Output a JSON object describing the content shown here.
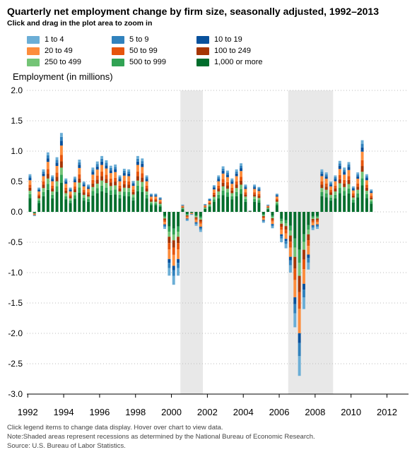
{
  "title": "Quarterly net employment change by firm size, seasonally adjusted, 1992–2013",
  "subtitle": "Click and drag in the plot area to zoom in",
  "footnotes": [
    "Click legend items to change data display. Hover over chart to view data.",
    "Note:Shaded areas represent recessions as determined by the National Bureau of Economic Research.",
    "Source: U.S. Bureau of Labor Statistics."
  ],
  "colors": {
    "recession": "#e8e8e8",
    "grid": "#bbbbbb",
    "axis": "#000000"
  },
  "chart_data": {
    "type": "bar",
    "stacked": true,
    "title": "Quarterly net employment change by firm size, seasonally adjusted, 1992–2013",
    "ylabel": "Employment (in millions)",
    "xlabel": "",
    "ylim": [
      -3.0,
      2.0
    ],
    "yticks": [
      "2.0",
      "1.5",
      "1.0",
      "0.5",
      "0.0",
      "-0.5",
      "-1.0",
      "-1.5",
      "-2.0",
      "-2.5",
      "-3.0"
    ],
    "ytick_values": [
      2.0,
      1.5,
      1.0,
      0.5,
      0.0,
      -0.5,
      -1.0,
      -1.5,
      -2.0,
      -2.5,
      -3.0
    ],
    "xticks": [
      "1992",
      "1994",
      "1996",
      "1998",
      "2000",
      "2002",
      "2004",
      "2006",
      "2008",
      "2010",
      "2012"
    ],
    "xtick_values": [
      1992,
      1994,
      1996,
      1998,
      2000,
      2002,
      2004,
      2006,
      2008,
      2010,
      2012
    ],
    "x_start": 1992.125,
    "x_step": 0.25,
    "recessions": [
      [
        2000.5,
        2001.75
      ],
      [
        2006.5,
        2009.0
      ]
    ],
    "grid": true,
    "legend_position": "top-left",
    "series_order": [
      "1 to 4",
      "5 to 9",
      "10 to 19",
      "20 to 49",
      "50 to 99",
      "100 to 249",
      "250 to 499",
      "500 to 999",
      "1,000 or more"
    ],
    "series_colors": {
      "1 to 4": "#6baed6",
      "5 to 9": "#3182bd",
      "10 to 19": "#08519c",
      "20 to 49": "#fd8d3c",
      "50 to 99": "#e6550d",
      "100 to 249": "#a63603",
      "250 to 499": "#74c476",
      "500 to 999": "#31a354",
      "1,000 or more": "#006d2c"
    },
    "quarter_totals": [
      0.62,
      -0.07,
      0.4,
      0.7,
      0.98,
      0.6,
      0.9,
      1.3,
      0.55,
      0.4,
      0.58,
      0.86,
      0.5,
      0.45,
      0.73,
      0.83,
      0.92,
      0.85,
      0.76,
      0.78,
      0.6,
      0.71,
      0.7,
      0.51,
      0.92,
      0.88,
      0.6,
      0.3,
      0.3,
      0.24,
      -0.28,
      -1.05,
      -1.2,
      -1.05,
      0.12,
      -0.15,
      -0.05,
      -0.23,
      -0.33,
      0.13,
      0.22,
      0.44,
      0.6,
      0.75,
      0.68,
      0.55,
      0.7,
      0.8,
      0.45,
      0.02,
      0.45,
      0.41,
      -0.18,
      0.12,
      -0.27,
      0.3,
      -0.5,
      -0.6,
      -1.0,
      -1.9,
      -2.7,
      -1.6,
      -0.95,
      -0.3,
      -0.28,
      0.7,
      0.65,
      0.5,
      0.6,
      0.84,
      0.73,
      0.82,
      0.42,
      0.65,
      1.18,
      0.62,
      0.37
    ],
    "quarter_shares": [
      [
        0.2,
        0.08,
        0.08,
        0.08,
        0.08,
        0.08,
        0.1,
        0.1,
        0.2
      ],
      [
        0.0,
        0.0,
        0.0,
        0.0,
        0.0,
        0.0,
        0.0,
        0.0,
        1.0
      ]
    ],
    "share_profile_note": "",
    "series": [
      {
        "name": "1 to 4"
      },
      {
        "name": "5 to 9"
      },
      {
        "name": "10 to 19"
      },
      {
        "name": "20 to 49"
      },
      {
        "name": "50 to 99"
      },
      {
        "name": "100 to 249"
      },
      {
        "name": "250 to 499"
      },
      {
        "name": "500 to 999"
      },
      {
        "name": "1,000 or more"
      }
    ]
  }
}
